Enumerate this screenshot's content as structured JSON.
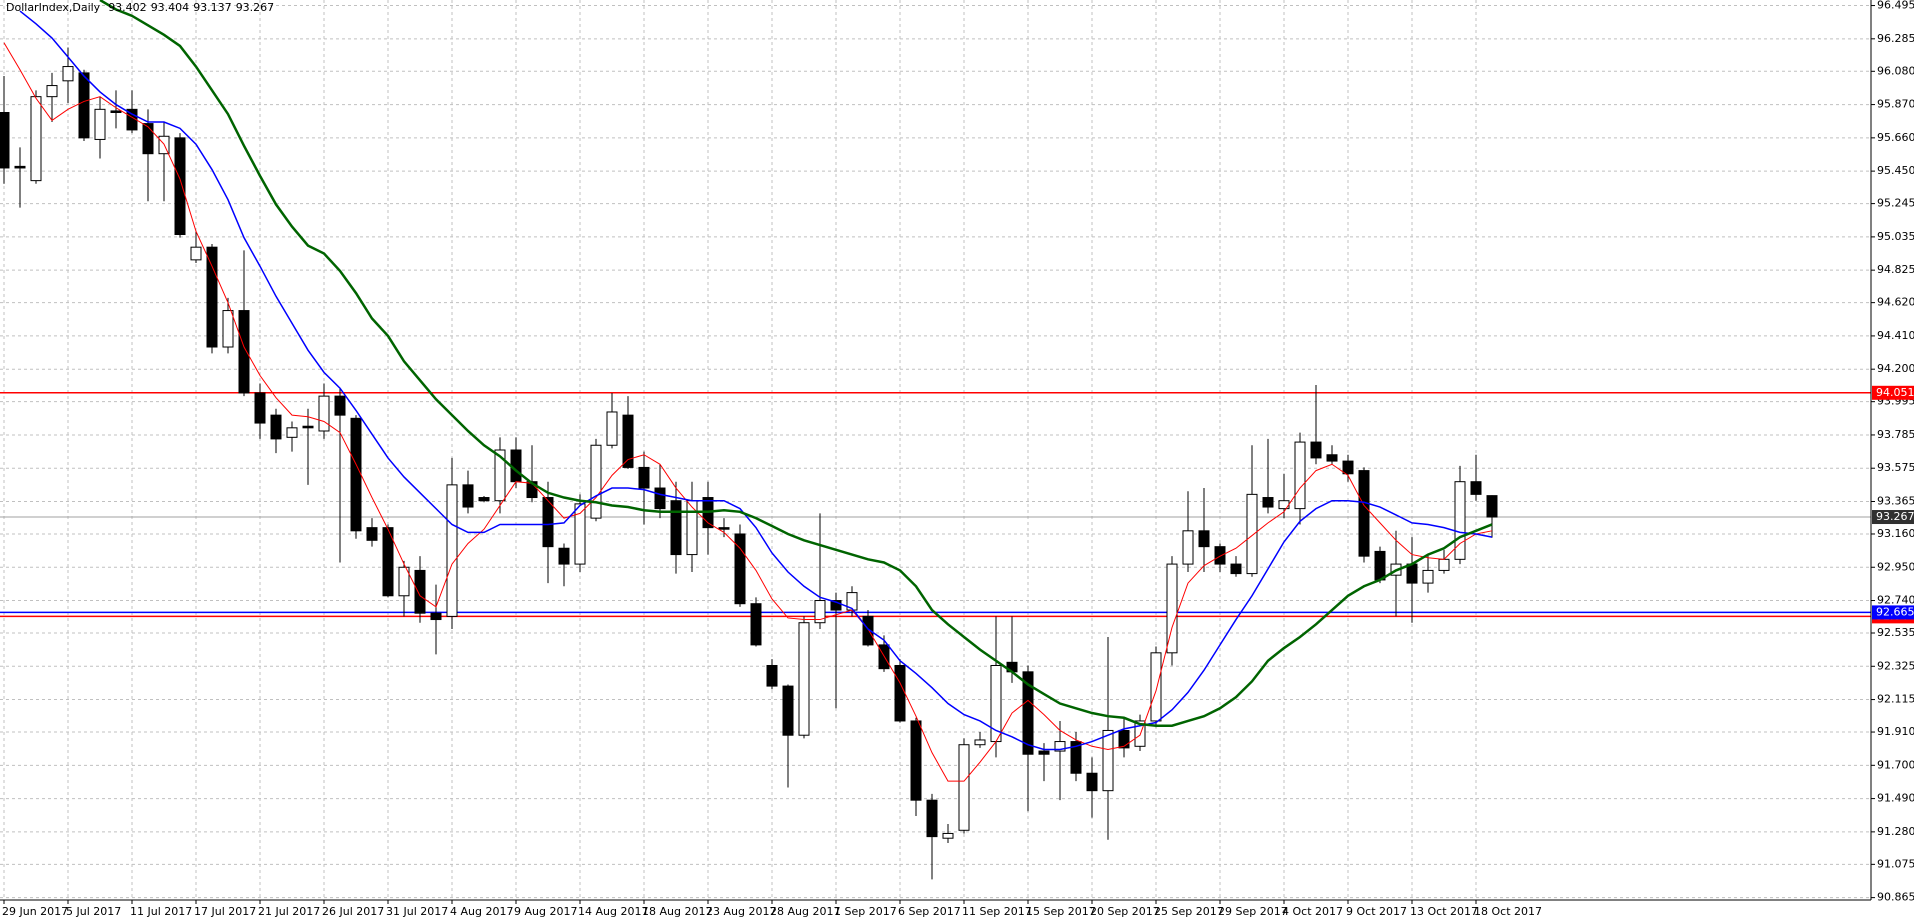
{
  "chart_data": {
    "type": "candlestick",
    "title": "DollarIndex,Daily",
    "categories": [
      "29 Jun 2017",
      null,
      null,
      null,
      "5 Jul 2017",
      null,
      null,
      null,
      "11 Jul 2017",
      null,
      null,
      null,
      "17 Jul 2017",
      null,
      null,
      null,
      "21 Jul 2017",
      null,
      null,
      null,
      "26 Jul 2017",
      null,
      null,
      null,
      "31 Jul 2017",
      null,
      null,
      null,
      "4 Aug 2017",
      null,
      null,
      null,
      "9 Aug 2017",
      null,
      null,
      null,
      "14 Aug 2017",
      null,
      null,
      null,
      "18 Aug 2017",
      null,
      null,
      null,
      "23 Aug 2017",
      null,
      null,
      null,
      "28 Aug 2017",
      null,
      null,
      null,
      "1 Sep 2017",
      null,
      null,
      null,
      "6 Sep 2017",
      null,
      null,
      null,
      "11 Sep 2017",
      null,
      null,
      null,
      "15 Sep 2017",
      null,
      null,
      null,
      "20 Sep 2017",
      null,
      null,
      null,
      "25 Sep 2017",
      null,
      null,
      null,
      "29 Sep 2017",
      null,
      null,
      null,
      "4 Oct 2017",
      null,
      null,
      null,
      "9 Oct 2017",
      null,
      null,
      null,
      "13 Oct 2017",
      null,
      null,
      null,
      "18 Oct 2017",
      null
    ],
    "open": [
      95.82,
      95.48,
      95.39,
      95.92,
      96.02,
      96.07,
      95.65,
      95.83,
      95.84,
      95.75,
      95.56,
      95.66,
      94.89,
      94.97,
      94.34,
      94.57,
      94.05,
      93.91,
      93.77,
      93.84,
      93.81,
      94.03,
      93.89,
      93.2,
      93.2,
      92.77,
      92.93,
      92.66,
      92.64,
      93.47,
      93.39,
      93.37,
      93.69,
      93.49,
      93.39,
      93.07,
      92.97,
      93.26,
      93.72,
      93.91,
      93.58,
      93.45,
      93.37,
      93.03,
      93.39,
      93.2,
      93.16,
      92.72,
      92.33,
      92.2,
      91.89,
      92.6,
      92.74,
      92.68,
      92.64,
      92.46,
      92.33,
      91.98,
      91.48,
      91.24,
      91.29,
      91.83,
      91.85,
      92.35,
      92.29,
      91.79,
      91.79,
      91.85,
      91.65,
      91.54,
      91.92,
      91.82,
      91.98,
      92.41,
      92.97,
      93.18,
      93.08,
      92.97,
      92.91,
      93.39,
      93.32,
      93.32,
      93.74,
      93.66,
      93.62,
      93.56,
      93.05,
      92.9,
      92.97,
      92.85,
      92.93,
      93.0,
      93.49,
      93.402
    ],
    "high": [
      96.05,
      95.6,
      95.96,
      96.07,
      96.23,
      96.09,
      95.92,
      95.96,
      95.96,
      95.84,
      95.76,
      95.69,
      95.07,
      94.99,
      94.65,
      94.95,
      94.11,
      93.95,
      93.87,
      93.95,
      94.11,
      94.08,
      93.91,
      93.26,
      93.22,
      92.99,
      93.02,
      92.84,
      93.64,
      93.56,
      93.4,
      93.77,
      93.77,
      93.72,
      93.49,
      93.1,
      93.41,
      93.76,
      94.05,
      94.03,
      93.68,
      93.6,
      93.49,
      93.49,
      93.49,
      93.26,
      93.22,
      92.76,
      92.37,
      92.21,
      92.64,
      93.29,
      92.79,
      92.83,
      92.68,
      92.52,
      92.37,
      92.0,
      91.52,
      91.33,
      91.87,
      91.91,
      92.64,
      92.64,
      92.33,
      91.84,
      91.98,
      91.91,
      91.75,
      92.51,
      92.0,
      92.02,
      92.45,
      93.02,
      93.43,
      93.45,
      93.1,
      93.02,
      93.72,
      93.76,
      93.54,
      93.8,
      94.1,
      93.72,
      93.66,
      93.58,
      93.08,
      93.18,
      93.14,
      93.03,
      93.06,
      93.59,
      93.66,
      93.404
    ],
    "low": [
      95.37,
      95.22,
      95.37,
      95.76,
      95.88,
      95.64,
      95.53,
      95.72,
      95.69,
      95.26,
      95.26,
      95.03,
      94.87,
      94.3,
      94.3,
      94.03,
      93.76,
      93.67,
      93.68,
      93.47,
      93.76,
      92.98,
      93.13,
      93.08,
      92.76,
      92.64,
      92.6,
      92.4,
      92.56,
      93.29,
      93.36,
      93.29,
      93.45,
      93.36,
      92.85,
      92.83,
      92.92,
      93.24,
      93.7,
      93.57,
      93.22,
      93.26,
      92.91,
      92.92,
      93.03,
      93.14,
      92.7,
      92.45,
      92.18,
      91.56,
      91.87,
      92.56,
      92.06,
      92.64,
      92.45,
      92.29,
      91.97,
      91.38,
      90.98,
      91.21,
      91.27,
      91.81,
      91.75,
      92.22,
      91.41,
      91.6,
      91.48,
      91.6,
      91.37,
      91.23,
      91.75,
      91.79,
      91.94,
      92.33,
      92.92,
      92.92,
      92.92,
      92.89,
      92.89,
      93.29,
      93.26,
      93.22,
      93.6,
      93.6,
      93.49,
      92.98,
      92.85,
      92.64,
      92.6,
      92.79,
      92.91,
      92.97,
      93.37,
      93.137
    ],
    "close": [
      95.47,
      95.47,
      95.92,
      95.99,
      96.11,
      95.66,
      95.84,
      95.82,
      95.71,
      95.56,
      95.67,
      95.05,
      94.97,
      94.34,
      94.57,
      94.05,
      93.86,
      93.76,
      93.83,
      93.83,
      94.03,
      93.91,
      93.18,
      93.12,
      92.77,
      92.95,
      92.66,
      92.62,
      93.47,
      93.33,
      93.37,
      93.69,
      93.49,
      93.39,
      93.08,
      92.97,
      93.35,
      93.72,
      93.93,
      93.58,
      93.45,
      93.32,
      93.03,
      93.37,
      93.2,
      93.19,
      92.72,
      92.46,
      92.2,
      91.89,
      92.6,
      92.74,
      92.68,
      92.79,
      92.46,
      92.31,
      91.98,
      91.48,
      91.25,
      91.27,
      91.83,
      91.86,
      92.33,
      92.29,
      91.77,
      91.77,
      91.85,
      91.65,
      91.54,
      91.92,
      91.81,
      91.98,
      92.41,
      92.97,
      93.18,
      93.08,
      92.97,
      92.91,
      93.41,
      93.33,
      93.37,
      93.74,
      93.64,
      93.62,
      93.54,
      93.02,
      92.87,
      92.97,
      92.85,
      92.93,
      93.0,
      93.49,
      93.41,
      93.267
    ],
    "up_color": "#ffffff",
    "down_color": "#000000",
    "lines": [
      {
        "color": "#ff0000",
        "values": [
          96.26,
          96.09,
          95.91,
          95.77,
          95.84,
          95.89,
          95.92,
          95.85,
          95.79,
          95.73,
          95.62,
          95.4,
          95.07,
          94.85,
          94.62,
          94.34,
          94.16,
          94.02,
          93.91,
          93.9,
          93.87,
          93.8,
          93.6,
          93.39,
          93.19,
          92.97,
          92.77,
          92.7,
          92.97,
          93.1,
          93.19,
          93.34,
          93.49,
          93.48,
          93.37,
          93.26,
          93.29,
          93.39,
          93.53,
          93.63,
          93.66,
          93.6,
          93.45,
          93.33,
          93.23,
          93.17,
          93.07,
          92.93,
          92.75,
          92.63,
          92.62,
          92.62,
          92.65,
          92.68,
          92.56,
          92.39,
          92.22,
          92.01,
          91.78,
          91.6,
          91.6,
          91.72,
          91.85,
          92.03,
          92.11,
          92.02,
          91.92,
          91.86,
          91.82,
          91.8,
          91.82,
          91.89,
          92.17,
          92.57,
          92.85,
          92.96,
          93.02,
          93.07,
          93.15,
          93.23,
          93.3,
          93.45,
          93.56,
          93.6,
          93.53,
          93.34,
          93.23,
          93.12,
          93.03,
          93.01,
          93.0,
          93.1,
          93.16,
          93.18
        ]
      },
      {
        "color": "#0000ff",
        "values": [
          null,
          96.46,
          96.38,
          96.29,
          96.17,
          96.05,
          95.95,
          95.87,
          95.81,
          95.76,
          95.76,
          95.72,
          95.62,
          95.46,
          95.27,
          95.03,
          94.85,
          94.66,
          94.49,
          94.32,
          94.18,
          94.08,
          93.94,
          93.79,
          93.64,
          93.52,
          93.42,
          93.32,
          93.22,
          93.17,
          93.17,
          93.22,
          93.22,
          93.22,
          93.22,
          93.23,
          93.34,
          93.4,
          93.45,
          93.45,
          93.44,
          93.41,
          93.39,
          93.37,
          93.37,
          93.37,
          93.32,
          93.2,
          93.04,
          92.92,
          92.83,
          92.76,
          92.73,
          92.69,
          92.56,
          92.49,
          92.36,
          92.28,
          92.19,
          92.09,
          92.02,
          91.98,
          91.92,
          91.88,
          91.83,
          91.8,
          91.8,
          91.82,
          91.85,
          91.89,
          91.93,
          91.95,
          91.97,
          92.05,
          92.16,
          92.3,
          92.46,
          92.62,
          92.77,
          92.94,
          93.11,
          93.24,
          93.32,
          93.37,
          93.37,
          93.36,
          93.33,
          93.28,
          93.23,
          93.22,
          93.2,
          93.17,
          93.16,
          93.14
        ]
      },
      {
        "color": "#006400",
        "values": [
          null,
          null,
          null,
          null,
          null,
          null,
          96.53,
          96.47,
          96.43,
          96.37,
          96.31,
          96.24,
          96.11,
          95.96,
          95.81,
          95.61,
          95.42,
          95.24,
          95.1,
          94.98,
          94.93,
          94.82,
          94.68,
          94.52,
          94.41,
          94.25,
          94.13,
          94.01,
          93.91,
          93.81,
          93.72,
          93.65,
          93.56,
          93.48,
          93.42,
          93.39,
          93.37,
          93.36,
          93.34,
          93.33,
          93.31,
          93.3,
          93.3,
          93.3,
          93.3,
          93.31,
          93.3,
          93.26,
          93.21,
          93.16,
          93.12,
          93.09,
          93.06,
          93.03,
          93.0,
          92.98,
          92.93,
          92.83,
          92.68,
          92.59,
          92.51,
          92.43,
          92.36,
          92.29,
          92.21,
          92.15,
          92.09,
          92.06,
          92.03,
          92.01,
          92.0,
          91.96,
          91.95,
          91.95,
          91.98,
          92.01,
          92.06,
          92.13,
          92.23,
          92.36,
          92.44,
          92.51,
          92.59,
          92.68,
          92.77,
          92.83,
          92.87,
          92.93,
          92.97,
          93.03,
          93.07,
          93.14,
          93.18,
          93.22
        ]
      }
    ],
    "levels": [
      {
        "value": 94.051,
        "color": "#ff0000"
      },
      {
        "value": 92.64,
        "color": "#ff0000"
      },
      {
        "value": 92.665,
        "color": "#0000ff"
      }
    ],
    "ylim": [
      90.85,
      96.53
    ],
    "yticks": [
      96.495,
      96.285,
      {
        "value": 96.08,
        "label": "96.080"
      },
      {
        "value": 95.87,
        "label": "95.870"
      },
      {
        "value": 95.66,
        "label": "95.660"
      },
      {
        "value": 95.45,
        "label": "95.450"
      },
      95.245,
      95.035,
      94.825,
      {
        "value": 94.62,
        "label": "94.620"
      },
      {
        "value": 94.41,
        "label": "94.410"
      },
      {
        "value": 94.2,
        "label": "94.200"
      },
      93.995,
      93.785,
      93.575,
      93.365,
      {
        "value": 93.16,
        "label": "93.160"
      },
      {
        "value": 92.95,
        "label": "92.950"
      },
      {
        "value": 92.74,
        "label": "92.740"
      },
      92.535,
      92.325,
      92.115,
      {
        "value": 91.91,
        "label": "91.910"
      },
      {
        "value": 91.7,
        "label": "91.700"
      },
      {
        "value": 91.49,
        "label": "91.490"
      },
      {
        "value": 91.28,
        "label": "91.280"
      },
      91.075,
      90.865
    ],
    "grid": true
  }
}
